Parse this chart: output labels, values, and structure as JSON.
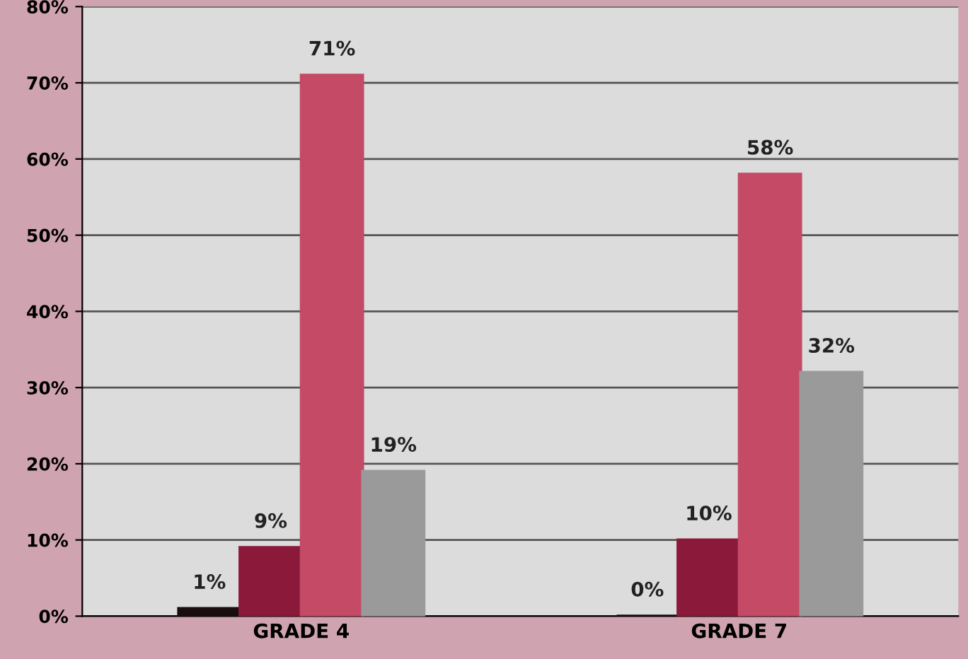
{
  "chart_data": {
    "type": "bar",
    "categories": [
      "GRADE 4",
      "GRADE 7"
    ],
    "series": [
      {
        "color": "#1a0d10",
        "values": [
          1,
          0
        ],
        "value_labels": [
          "1%",
          "0%"
        ]
      },
      {
        "color": "#8b1a3a",
        "values": [
          9,
          10
        ],
        "value_labels": [
          "9%",
          "10%"
        ]
      },
      {
        "color": "#c44a66",
        "values": [
          71,
          58
        ],
        "value_labels": [
          "71%",
          "58%"
        ]
      },
      {
        "color": "#9a9a9a",
        "values": [
          19,
          32
        ],
        "value_labels": [
          "19%",
          "32%"
        ]
      }
    ],
    "ylim": [
      0,
      80
    ],
    "yticks": [
      {
        "value": 0,
        "label": "0%"
      },
      {
        "value": 10,
        "label": "10%"
      },
      {
        "value": 20,
        "label": "20%"
      },
      {
        "value": 30,
        "label": "30%"
      },
      {
        "value": 40,
        "label": "40%"
      },
      {
        "value": 50,
        "label": "50%"
      },
      {
        "value": 60,
        "label": "60%"
      },
      {
        "value": 70,
        "label": "70%"
      },
      {
        "value": 80,
        "label": "80%"
      }
    ],
    "grid": "y"
  }
}
